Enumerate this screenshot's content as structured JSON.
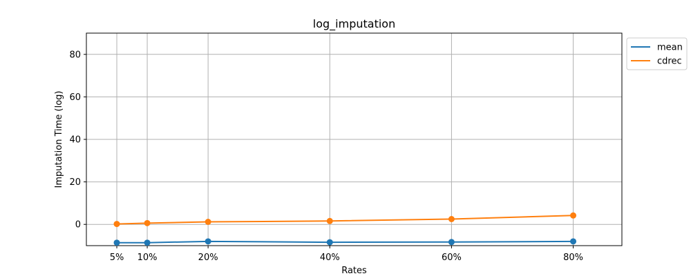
{
  "chart_data": {
    "type": "line",
    "title": "log_imputation",
    "xlabel": "Rates",
    "ylabel": "Imputation Time (log)",
    "x": [
      0.05,
      0.1,
      0.2,
      0.4,
      0.6,
      0.8
    ],
    "x_tick_labels": [
      "5%",
      "10%",
      "20%",
      "40%",
      "60%",
      "80%"
    ],
    "y_ticks": [
      0,
      20,
      40,
      60,
      80
    ],
    "xlim": [
      -0.0,
      0.88
    ],
    "ylim": [
      -10,
      90
    ],
    "grid": true,
    "legend_position": "outside-top-right",
    "series": [
      {
        "name": "mean",
        "color": "#1f77b4",
        "values": [
          -8.6,
          -8.6,
          -8.0,
          -8.4,
          -8.3,
          -8.0
        ]
      },
      {
        "name": "cdrec",
        "color": "#ff7f0e",
        "values": [
          0.2,
          0.6,
          1.2,
          1.6,
          2.5,
          4.2
        ]
      }
    ]
  }
}
